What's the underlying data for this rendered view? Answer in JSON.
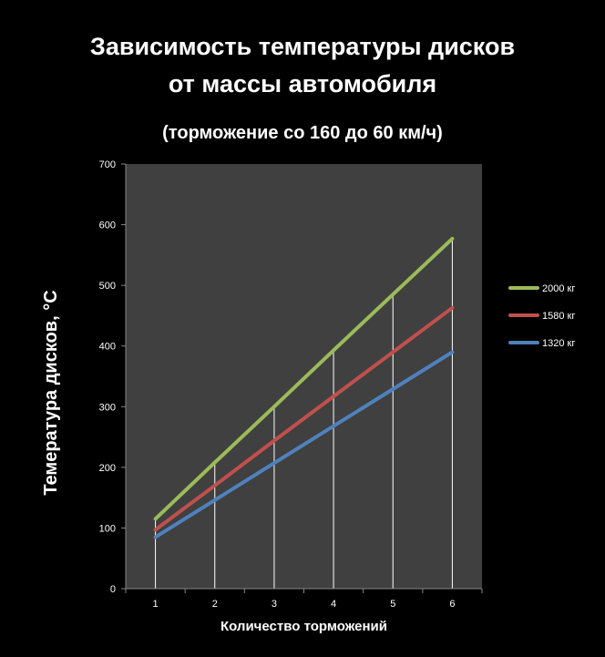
{
  "chart_data": {
    "type": "line",
    "title_lines": [
      "Зависимость температуры дисков",
      "от массы автомобиля"
    ],
    "subtitle": "(торможение со 160 до 60 км/ч)",
    "xlabel": "Количество торможений",
    "ylabel": "Темература дисков, °С",
    "x": [
      1,
      2,
      3,
      4,
      5,
      6
    ],
    "ylim": [
      0,
      700
    ],
    "yticks": [
      0,
      100,
      200,
      300,
      400,
      500,
      600,
      700
    ],
    "grid": "vertical",
    "legend_position": "right",
    "series": [
      {
        "name": "2000 кг",
        "color": "#9BBB59",
        "values": [
          115,
          208,
          300,
          393,
          485,
          577
        ]
      },
      {
        "name": "1580 кг",
        "color": "#C0504D",
        "values": [
          97,
          170,
          244,
          317,
          390,
          463
        ]
      },
      {
        "name": "1320 кг",
        "color": "#4F81BD",
        "values": [
          85,
          146,
          207,
          268,
          329,
          390
        ]
      }
    ]
  },
  "colors": {
    "background": "#000000",
    "plot_area": "#404040",
    "grid_line": "#ffffff",
    "axis_line": "#868686",
    "text": "#ffffff"
  }
}
